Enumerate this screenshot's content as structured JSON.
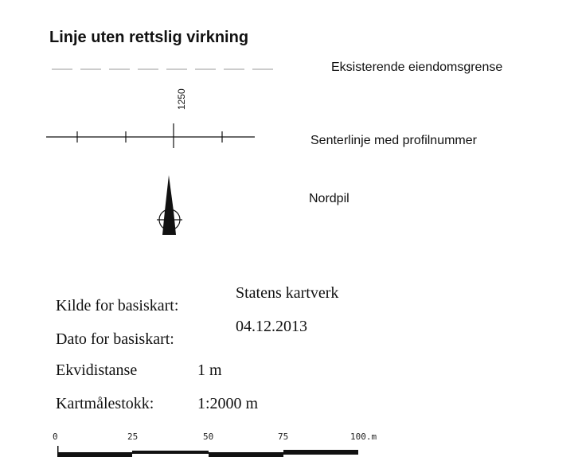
{
  "title": "Linje uten rettslig virkning",
  "items": [
    {
      "label": "Eksisterende eiendomsgrense"
    },
    {
      "label": "Senterlinje med profilnummer",
      "profile_number": "1250"
    },
    {
      "label": "Nordpil"
    }
  ],
  "info": [
    {
      "label": "Kilde for basiskart:",
      "value": "Statens kartverk"
    },
    {
      "label": "Dato for basiskart:",
      "value": "04.12.2013"
    },
    {
      "label": "Ekvidistanse",
      "value": "1 m"
    },
    {
      "label": "Kartmålestokk:",
      "value": "1:2000 m"
    }
  ],
  "scale_bar": {
    "labels": [
      "0",
      "25",
      "50",
      "75",
      "100.m"
    ]
  }
}
